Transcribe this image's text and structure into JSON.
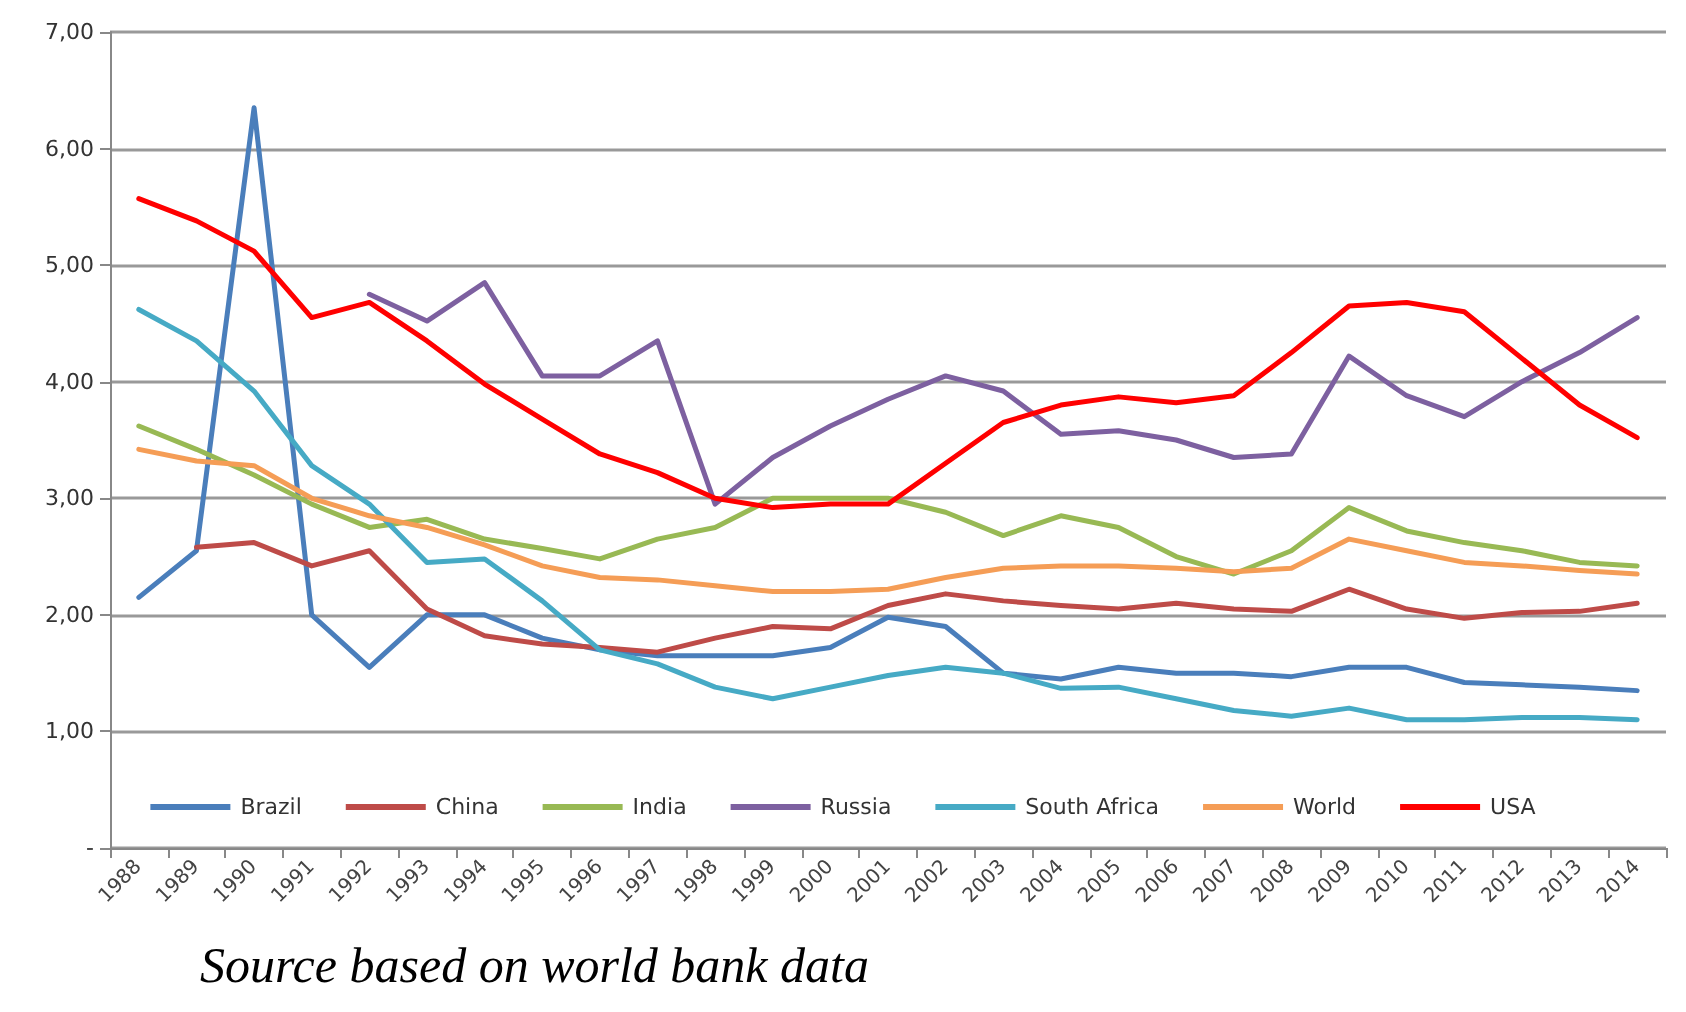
{
  "chart_data": {
    "type": "line",
    "categories": [
      "1988",
      "1989",
      "1990",
      "1991",
      "1992",
      "1993",
      "1994",
      "1995",
      "1996",
      "1997",
      "1998",
      "1999",
      "2000",
      "2001",
      "2002",
      "2003",
      "2004",
      "2005",
      "2006",
      "2007",
      "2008",
      "2009",
      "2010",
      "2011",
      "2012",
      "2013",
      "2014"
    ],
    "series": [
      {
        "name": "Brazil",
        "color": "#4a7ebb",
        "values": [
          2.15,
          2.55,
          6.35,
          2.0,
          1.55,
          2.0,
          2.0,
          1.8,
          1.7,
          1.65,
          1.65,
          1.65,
          1.72,
          1.98,
          1.9,
          1.5,
          1.45,
          1.55,
          1.5,
          1.5,
          1.47,
          1.55,
          1.55,
          1.42,
          1.4,
          1.38,
          1.35
        ]
      },
      {
        "name": "China",
        "color": "#be4b48",
        "values": [
          null,
          2.58,
          2.62,
          2.42,
          2.55,
          2.05,
          1.82,
          1.75,
          1.72,
          1.68,
          1.8,
          1.9,
          1.88,
          2.08,
          2.18,
          2.12,
          2.08,
          2.05,
          2.1,
          2.05,
          2.03,
          2.22,
          2.05,
          1.97,
          2.02,
          2.03,
          2.1
        ]
      },
      {
        "name": "India",
        "color": "#98b954",
        "values": [
          3.62,
          3.42,
          3.2,
          2.95,
          2.75,
          2.82,
          2.65,
          2.57,
          2.48,
          2.65,
          2.75,
          3.0,
          3.0,
          3.0,
          2.88,
          2.68,
          2.85,
          2.75,
          2.5,
          2.35,
          2.55,
          2.92,
          2.72,
          2.62,
          2.55,
          2.45,
          2.42
        ]
      },
      {
        "name": "Russia",
        "color": "#7d60a0",
        "values": [
          null,
          null,
          null,
          null,
          4.75,
          4.52,
          4.85,
          4.05,
          4.05,
          4.35,
          2.95,
          3.35,
          3.62,
          3.85,
          4.05,
          3.92,
          3.55,
          3.58,
          3.5,
          3.35,
          3.38,
          4.22,
          3.88,
          3.7,
          4.0,
          4.25,
          4.55
        ]
      },
      {
        "name": "South Africa",
        "color": "#46aac5",
        "values": [
          4.62,
          4.35,
          3.92,
          3.28,
          2.95,
          2.45,
          2.48,
          2.12,
          1.7,
          1.58,
          1.38,
          1.28,
          1.38,
          1.48,
          1.55,
          1.5,
          1.37,
          1.38,
          1.28,
          1.18,
          1.13,
          1.2,
          1.1,
          1.1,
          1.12,
          1.12,
          1.1
        ]
      },
      {
        "name": "World",
        "color": "#f59d56",
        "values": [
          3.42,
          3.32,
          3.28,
          3.0,
          2.85,
          2.75,
          2.6,
          2.42,
          2.32,
          2.3,
          2.25,
          2.2,
          2.2,
          2.22,
          2.32,
          2.4,
          2.42,
          2.42,
          2.4,
          2.37,
          2.4,
          2.65,
          2.55,
          2.45,
          2.42,
          2.38,
          2.35
        ]
      },
      {
        "name": "USA",
        "color": "#ff0000",
        "values": [
          5.57,
          5.38,
          5.12,
          4.55,
          4.68,
          4.35,
          3.98,
          3.68,
          3.38,
          3.22,
          3.0,
          2.92,
          2.95,
          2.95,
          3.3,
          3.65,
          3.8,
          3.87,
          3.82,
          3.88,
          4.25,
          4.65,
          4.68,
          4.6,
          4.2,
          3.8,
          3.52
        ]
      }
    ],
    "ylim": [
      0,
      7
    ],
    "yticks": [
      {
        "value": 0,
        "label": "-"
      },
      {
        "value": 1,
        "label": "1,00"
      },
      {
        "value": 2,
        "label": "2,00"
      },
      {
        "value": 3,
        "label": "3,00"
      },
      {
        "value": 4,
        "label": "4,00"
      },
      {
        "value": 5,
        "label": "5,00"
      },
      {
        "value": 6,
        "label": "6,00"
      },
      {
        "value": 7,
        "label": "7,00"
      }
    ],
    "grid": "y",
    "legend": "bottom",
    "marker": "none",
    "line_style": "solid",
    "annotations": [
      "Source based on world bank data"
    ]
  }
}
